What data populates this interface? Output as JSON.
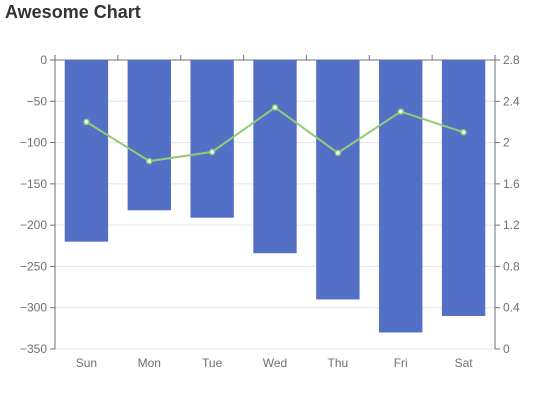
{
  "chart_data": {
    "type": "bar",
    "title": "Awesome Chart",
    "categories": [
      "Sun",
      "Mon",
      "Tue",
      "Wed",
      "Thu",
      "Fri",
      "Sat"
    ],
    "series": [
      {
        "type": "bar",
        "axis": "left",
        "color": "#5470c6",
        "values": [
          -220,
          -182,
          -191,
          -234,
          -290,
          -330,
          -310
        ]
      },
      {
        "type": "line",
        "axis": "right",
        "color": "#91cc75",
        "values": [
          2.2,
          1.82,
          1.91,
          2.34,
          1.9,
          2.3,
          2.1
        ]
      }
    ],
    "y_left": {
      "min": -350,
      "max": 0,
      "ticks": [
        "0",
        "−50",
        "−100",
        "−150",
        "−200",
        "−250",
        "−300",
        "−350"
      ]
    },
    "y_right": {
      "min": 0,
      "max": 2.8,
      "ticks": [
        "2.8",
        "2.4",
        "2",
        "1.6",
        "1.2",
        "0.8",
        "0.4",
        "0"
      ]
    },
    "grid": true,
    "legend": "none"
  }
}
